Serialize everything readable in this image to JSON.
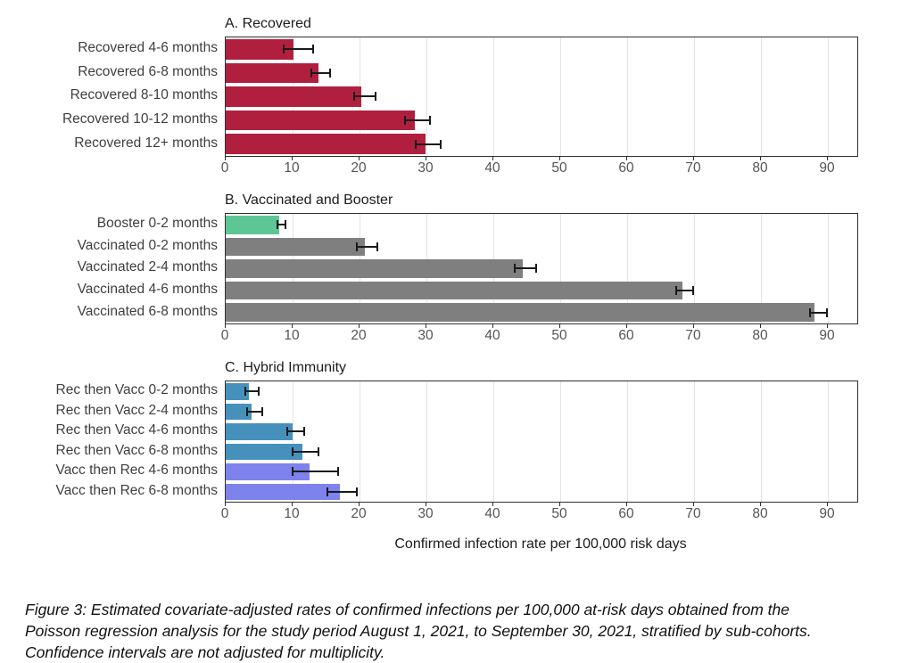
{
  "figure": {
    "xlabel": "Confirmed infection rate per 100,000 risk days",
    "caption": "Figure 3: Estimated covariate-adjusted rates of confirmed infections per 100,000 at-risk days obtained from the Poisson regression analysis for the study period August 1, 2021, to September 30, 2021, stratified by sub-cohorts. Confidence intervals are not adjusted for multiplicity."
  },
  "colors": {
    "recovered_red": "#b0203e",
    "booster_green": "#5ec695",
    "vaccinated_gray": "#7f7f7f",
    "rec_then_vacc_blue": "#4591bc",
    "vacc_then_rec_purple": "#7e82ec",
    "error_bar": "#1a1a1a",
    "panel_border": "#2f2f2f",
    "gridline": "#e4e4e4",
    "tick_text": "#555555",
    "label_text": "#3f3f3f"
  },
  "chart_data": [
    {
      "type": "bar",
      "orientation": "horizontal",
      "title": "A. Recovered",
      "categories": [
        "Recovered 4-6 months",
        "Recovered 6-8 months",
        "Recovered 8-10 months",
        "Recovered 10-12 months",
        "Recovered 12+ months"
      ],
      "values": [
        10.1,
        13.9,
        20.3,
        28.2,
        29.8
      ],
      "ci_low": [
        8.5,
        12.7,
        19.0,
        26.7,
        28.2
      ],
      "ci_high": [
        12.6,
        15.2,
        22.0,
        30.1,
        31.7
      ],
      "bar_colors": [
        "#b0203e",
        "#b0203e",
        "#b0203e",
        "#b0203e",
        "#b0203e"
      ],
      "xlim": [
        0,
        94.4
      ],
      "xticks": [
        0,
        10,
        20,
        30,
        40,
        50,
        60,
        70,
        80,
        90
      ],
      "grid": true,
      "error_bars": true
    },
    {
      "type": "bar",
      "orientation": "horizontal",
      "title": "B. Vaccinated and Booster",
      "categories": [
        "Booster 0-2 months",
        "Vaccinated 0-2 months",
        "Vaccinated 2-4 months",
        "Vaccinated 4-6 months",
        "Vaccinated 6-8 months"
      ],
      "values": [
        8.0,
        20.8,
        44.4,
        68.2,
        88.0
      ],
      "ci_low": [
        7.6,
        19.5,
        43.0,
        67.2,
        87.2
      ],
      "ci_high": [
        8.6,
        22.2,
        46.0,
        69.5,
        89.4
      ],
      "bar_colors": [
        "#5ec695",
        "#7f7f7f",
        "#7f7f7f",
        "#7f7f7f",
        "#7f7f7f"
      ],
      "xlim": [
        0,
        94.4
      ],
      "xticks": [
        0,
        10,
        20,
        30,
        40,
        50,
        60,
        70,
        80,
        90
      ],
      "grid": true,
      "error_bars": true
    },
    {
      "type": "bar",
      "orientation": "horizontal",
      "title": "C. Hybrid Immunity",
      "categories": [
        "Rec then Vacc 0-2 months",
        "Rec then Vacc 2-4 months",
        "Rec then Vacc 4-6 months",
        "Rec then Vacc 6-8 months",
        "Vacc then Rec 4-6 months",
        "Vacc then Rec 6-8 months"
      ],
      "values": [
        3.5,
        3.9,
        10.0,
        11.4,
        12.5,
        17.1
      ],
      "ci_low": [
        2.8,
        3.1,
        9.0,
        9.8,
        9.8,
        15.1
      ],
      "ci_high": [
        4.5,
        5.1,
        11.3,
        13.4,
        16.4,
        19.2
      ],
      "bar_colors": [
        "#4591bc",
        "#4591bc",
        "#4591bc",
        "#4591bc",
        "#7e82ec",
        "#7e82ec"
      ],
      "xlim": [
        0,
        94.4
      ],
      "xticks": [
        0,
        10,
        20,
        30,
        40,
        50,
        60,
        70,
        80,
        90
      ],
      "grid": true,
      "error_bars": true
    }
  ]
}
